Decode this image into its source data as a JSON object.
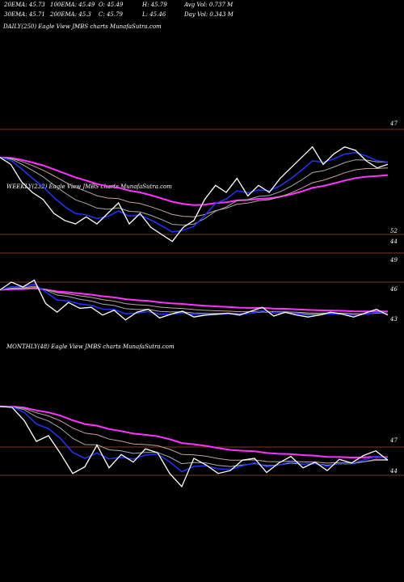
{
  "header": {
    "row1": [
      "20EMA: 45.73",
      "100EMA: 45.49",
      "O: 45.49",
      "H: 45.79",
      "Avg Vol: 0.737 M"
    ],
    "row2": [
      "30EMA: 45.71",
      "200EMA: 45.3",
      "C: 45.79",
      "L: 45.46",
      "Day Vol: 0.343 M"
    ]
  },
  "colors": {
    "background": "#000000",
    "price": "#ffffff",
    "ema_fast": "#2233ff",
    "ema_slow": "#ff33ff",
    "ema_mid": "#c9a0a0",
    "ema_mid2": "#aaaaaa",
    "separator": "#7a3a1e"
  },
  "chart_data": [
    {
      "type": "line",
      "title": "DAILY(250) Eagle  View  JMBS charts MunafaSutra.com",
      "y_ticks": [
        "47",
        "44"
      ],
      "series": [
        {
          "values": [
            46.2,
            46.0,
            45.5,
            45.2,
            45.0,
            44.6,
            44.4,
            44.3,
            44.5,
            44.3,
            44.6,
            44.9,
            44.3,
            44.6,
            44.2,
            44.0,
            43.8,
            44.2,
            44.4,
            45.0,
            45.4,
            45.2,
            45.6,
            45.1,
            45.4,
            45.2,
            45.6,
            45.9,
            46.2,
            46.5,
            46.0,
            46.3,
            46.5,
            46.4,
            46.1,
            45.9,
            46.0
          ]
        }
      ]
    },
    {
      "type": "line",
      "title": "WEEKLY(232) Eagle  View  JMBS charts MunafaSutra.com",
      "y_ticks": [
        "52",
        "49",
        "46",
        "43"
      ],
      "series": [
        {
          "values": [
            48.2,
            49.0,
            48.5,
            49.2,
            46.8,
            45.9,
            46.9,
            46.3,
            46.4,
            45.6,
            46.1,
            45.1,
            45.9,
            46.2,
            45.3,
            45.7,
            46.0,
            45.4,
            45.6,
            45.7,
            45.8,
            45.6,
            46.0,
            46.4,
            45.5,
            45.9,
            45.6,
            45.4,
            45.6,
            45.9,
            45.7,
            45.4,
            45.8,
            46.2,
            45.6
          ]
        }
      ]
    },
    {
      "type": "line",
      "title": "MONTHLY(48) Eagle  View  JMBS charts MunafaSutra.com",
      "y_ticks": [
        "47",
        "44"
      ],
      "series": [
        {
          "values": [
            51.3,
            51.2,
            49.8,
            47.6,
            48.2,
            46.3,
            44.2,
            44.9,
            47.2,
            44.8,
            46.2,
            45.4,
            46.8,
            46.4,
            44.2,
            42.8,
            45.8,
            45.1,
            44.2,
            44.5,
            45.6,
            45.8,
            44.3,
            45.3,
            46.0,
            44.8,
            45.4,
            44.5,
            45.7,
            45.3,
            46.1,
            46.6,
            45.6
          ]
        }
      ]
    }
  ]
}
